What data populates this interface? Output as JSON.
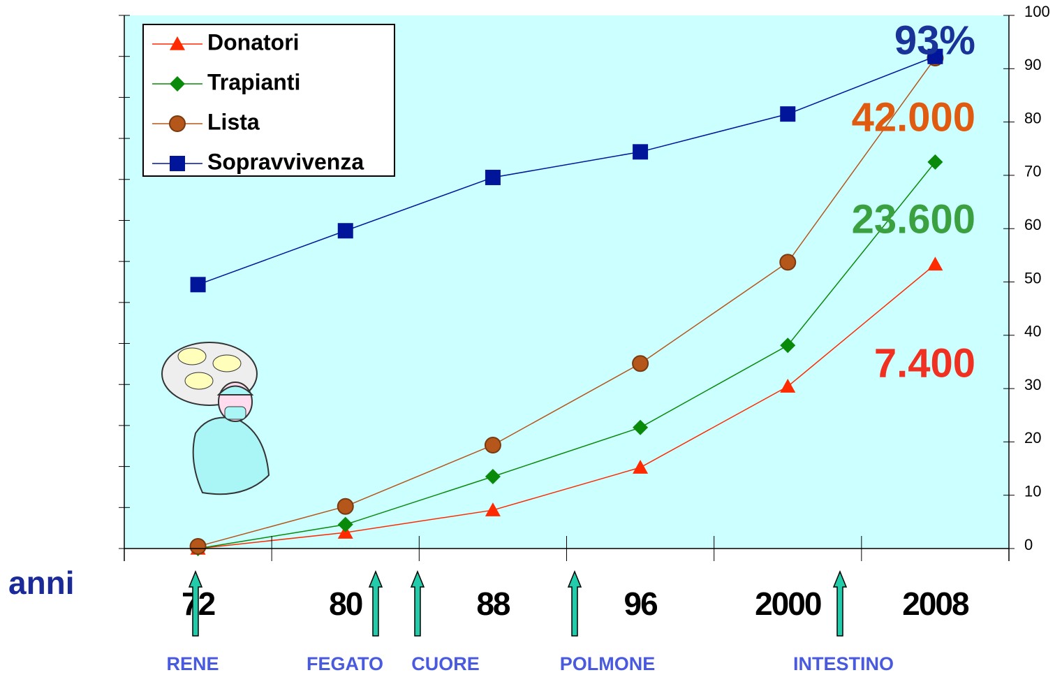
{
  "chart_data": {
    "type": "line",
    "x_label": "anni",
    "categories": [
      "72",
      "80",
      "88",
      "96",
      "2000",
      "2008"
    ],
    "series": [
      {
        "name": "Donatori",
        "color": "#ff2a00",
        "marker": "triangle",
        "values": [
          0,
          3,
          7.2,
          15.2,
          30.4,
          53.3
        ]
      },
      {
        "name": "Trapianti",
        "color": "#0a8a0a",
        "marker": "diamond",
        "values": [
          0,
          4.5,
          13.5,
          22.7,
          38.1,
          72.5
        ]
      },
      {
        "name": "Lista",
        "color": "#b5561a",
        "marker": "circle",
        "values": [
          0.4,
          7.9,
          19.4,
          34.7,
          53.7,
          92
        ]
      },
      {
        "name": "Sopravvivenza",
        "color": "#00159a",
        "marker": "square",
        "values": [
          49.5,
          59.6,
          69.6,
          74.4,
          81.5,
          92.3
        ]
      }
    ],
    "ylim": [
      0,
      100
    ],
    "yticks": [
      0,
      10,
      20,
      30,
      40,
      50,
      60,
      70,
      80,
      90,
      100
    ],
    "annotations": [
      {
        "text": "93%",
        "color": "#1a3399"
      },
      {
        "text": "42.000",
        "color": "#e05a10"
      },
      {
        "text": "23.600",
        "color": "#3aa040"
      },
      {
        "text": "7.400",
        "color": "#f03020"
      }
    ],
    "organs": [
      "RENE",
      "FEGATO",
      "CUORE",
      "POLMONE",
      "INTESTINO"
    ]
  }
}
